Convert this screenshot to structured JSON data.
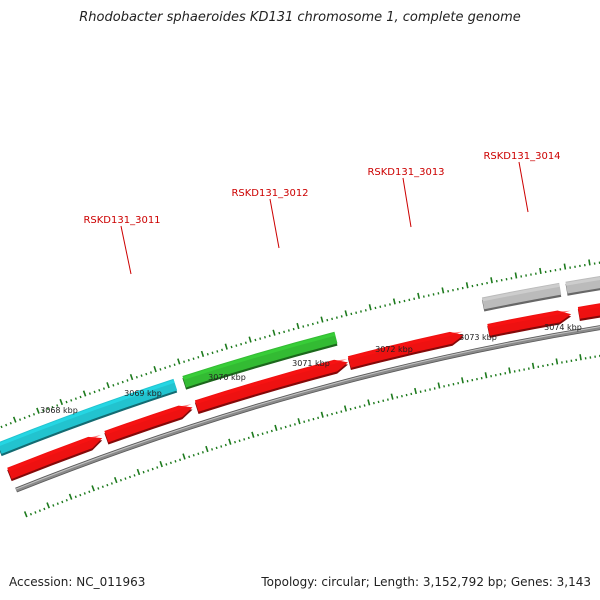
{
  "title": "Rhodobacter sphaeroides KD131 chromosome 1, complete genome",
  "footer": {
    "accession": "Accession: NC_011963",
    "summary": "Topology: circular; Length: 3,152,792 bp; Genes: 3,143"
  },
  "colors": {
    "backbone": "#8a8a8a",
    "tick": "#1d7a1d",
    "label_text": "#cc0000",
    "leader": "#cc0000",
    "kbp_text": "#222222"
  },
  "kbp_labels": [
    "3068 kbp",
    "3069 kbp",
    "3070 kbp",
    "3071 kbp",
    "3072 kbp",
    "3073 kbp",
    "3074 kbp"
  ],
  "genes": [
    {
      "id": "g1",
      "track": "top",
      "color": "#22c3cf",
      "name": "RSKD131_3011"
    },
    {
      "id": "g2",
      "track": "top",
      "color": "#33bb33",
      "name": "RSKD131_3012"
    },
    {
      "id": "g3",
      "track": "top",
      "color": "#bbbbbb",
      "name": "RSKD131_3014"
    },
    {
      "id": "g4",
      "track": "top",
      "color": "#bbbbbb",
      "name": ""
    },
    {
      "id": "g5",
      "track": "bottom",
      "color": "#ee1111",
      "name": ""
    },
    {
      "id": "g6",
      "track": "bottom",
      "color": "#ee1111",
      "name": ""
    },
    {
      "id": "g7",
      "track": "bottom",
      "color": "#ee1111",
      "name": ""
    },
    {
      "id": "g8",
      "track": "bottom",
      "color": "#ee1111",
      "name": "RSKD131_3013"
    },
    {
      "id": "g9",
      "track": "bottom",
      "color": "#ee1111",
      "name": ""
    },
    {
      "id": "g10",
      "track": "bottom",
      "color": "#ee1111",
      "name": ""
    }
  ]
}
